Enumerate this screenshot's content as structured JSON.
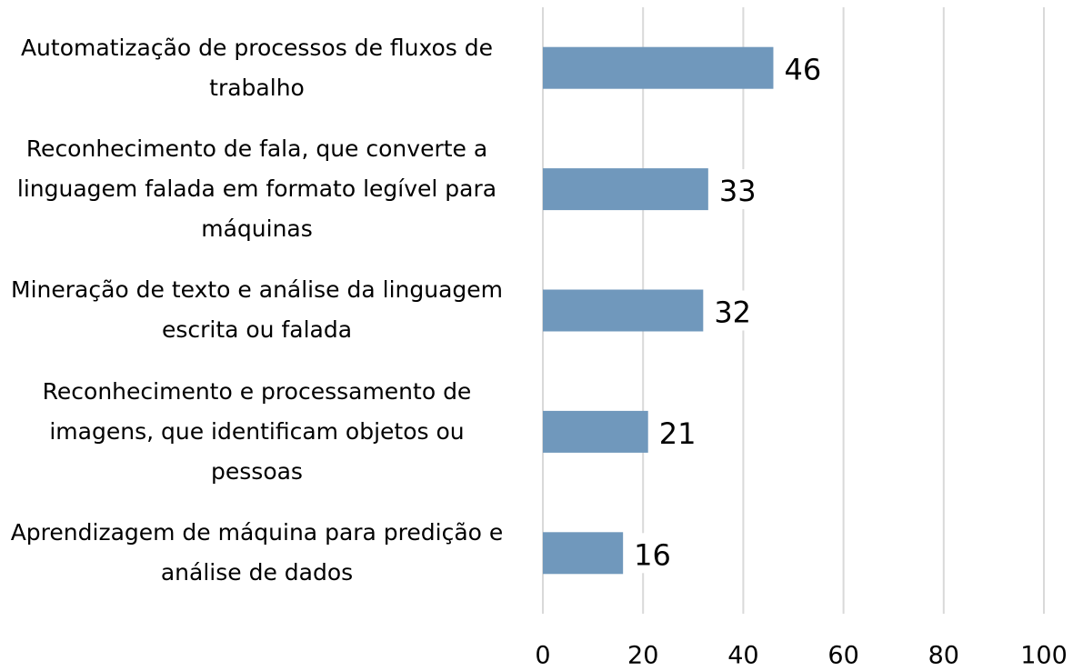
{
  "chart_data": {
    "type": "barh",
    "categories": [
      "Automatização de processos de fluxos de trabalho",
      "Reconhecimento de fala, que converte a linguagem falada em formato legível para máquinas",
      "Mineração de texto e análise da linguagem escrita ou falada",
      "Reconhecimento e processamento de imagens, que identificam objetos ou pessoas",
      "Aprendizagem de máquina para predição e análise de dados"
    ],
    "values": [
      46,
      33,
      32,
      21,
      16
    ],
    "color": "#7098bc",
    "xlim": [
      0,
      100
    ],
    "xticks": [
      0,
      20,
      40,
      60,
      80,
      100
    ],
    "grid": true
  }
}
